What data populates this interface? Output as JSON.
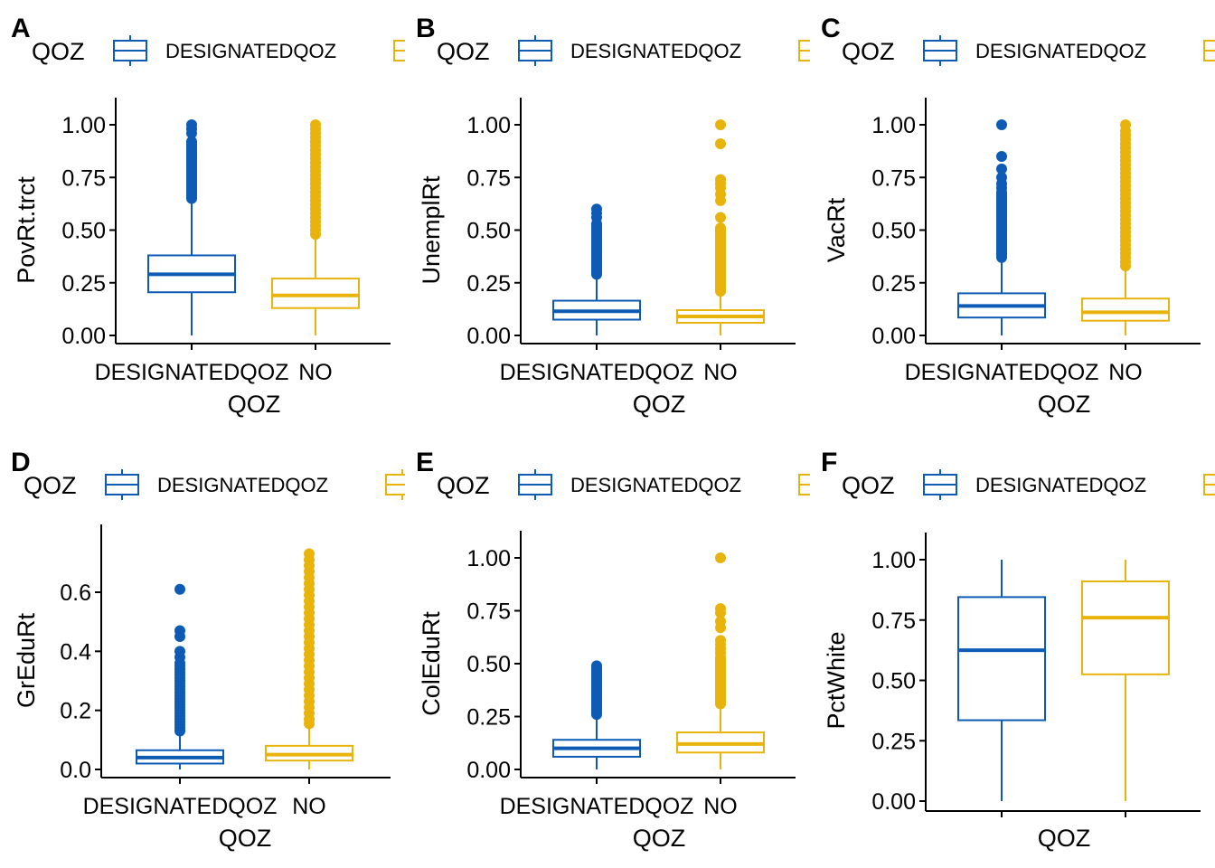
{
  "colors": {
    "designated": "#0d5bb5",
    "no": "#e8b40c"
  },
  "legend": {
    "title": "QOZ",
    "labels": [
      "DESIGNATEDQOZ",
      "NO"
    ]
  },
  "chart_data": [
    {
      "panel": "A",
      "type": "box",
      "xlabel": "QOZ",
      "ylabel": "PovRt.trct",
      "ylim": [
        0,
        1
      ],
      "yticks": [
        "0.00",
        "0.25",
        "0.50",
        "0.75",
        "1.00"
      ],
      "xticks": [
        "DESIGNATEDQOZ",
        "NO"
      ],
      "series": [
        {
          "name": "DESIGNATEDQOZ",
          "q1": 0.205,
          "median": 0.29,
          "q3": 0.38,
          "whisker_low": 0.0,
          "whisker_high": 0.65,
          "outliers": [
            0.65,
            0.66,
            0.67,
            0.68,
            0.69,
            0.7,
            0.71,
            0.72,
            0.73,
            0.74,
            0.75,
            0.76,
            0.77,
            0.78,
            0.79,
            0.8,
            0.81,
            0.82,
            0.83,
            0.84,
            0.85,
            0.86,
            0.87,
            0.88,
            0.89,
            0.9,
            0.91,
            0.92,
            0.96,
            0.98,
            1.0
          ]
        },
        {
          "name": "NO",
          "q1": 0.13,
          "median": 0.19,
          "q3": 0.27,
          "whisker_low": 0.0,
          "whisker_high": 0.48,
          "outliers": [
            0.48,
            0.5,
            0.52,
            0.54,
            0.56,
            0.58,
            0.6,
            0.62,
            0.64,
            0.66,
            0.68,
            0.7,
            0.72,
            0.74,
            0.76,
            0.78,
            0.8,
            0.82,
            0.84,
            0.86,
            0.88,
            0.9,
            0.92,
            0.94,
            0.96,
            0.98,
            1.0
          ]
        }
      ]
    },
    {
      "panel": "B",
      "type": "box",
      "xlabel": "QOZ",
      "ylabel": "UnemplRt",
      "ylim": [
        0,
        1
      ],
      "yticks": [
        "0.00",
        "0.25",
        "0.50",
        "0.75",
        "1.00"
      ],
      "xticks": [
        "DESIGNATEDQOZ",
        "NO"
      ],
      "series": [
        {
          "name": "DESIGNATEDQOZ",
          "q1": 0.075,
          "median": 0.115,
          "q3": 0.165,
          "whisker_low": 0.0,
          "whisker_high": 0.29,
          "outliers": [
            0.29,
            0.3,
            0.31,
            0.32,
            0.33,
            0.34,
            0.35,
            0.36,
            0.37,
            0.38,
            0.39,
            0.4,
            0.41,
            0.42,
            0.43,
            0.44,
            0.45,
            0.46,
            0.47,
            0.48,
            0.49,
            0.5,
            0.51,
            0.52,
            0.53,
            0.56,
            0.58,
            0.6
          ]
        },
        {
          "name": "NO",
          "q1": 0.06,
          "median": 0.09,
          "q3": 0.12,
          "whisker_low": 0.0,
          "whisker_high": 0.21,
          "outliers": [
            0.21,
            0.22,
            0.23,
            0.24,
            0.25,
            0.26,
            0.27,
            0.28,
            0.29,
            0.3,
            0.31,
            0.32,
            0.33,
            0.34,
            0.35,
            0.36,
            0.37,
            0.38,
            0.39,
            0.4,
            0.41,
            0.42,
            0.43,
            0.44,
            0.45,
            0.46,
            0.47,
            0.48,
            0.49,
            0.5,
            0.51,
            0.56,
            0.64,
            0.67,
            0.7,
            0.72,
            0.74,
            0.91,
            1.0
          ]
        }
      ]
    },
    {
      "panel": "C",
      "type": "box",
      "xlabel": "QOZ",
      "ylabel": "VacRt",
      "ylim": [
        0,
        1
      ],
      "yticks": [
        "0.00",
        "0.25",
        "0.50",
        "0.75",
        "1.00"
      ],
      "xticks": [
        "DESIGNATEDQOZ",
        "NO"
      ],
      "series": [
        {
          "name": "DESIGNATEDQOZ",
          "q1": 0.085,
          "median": 0.14,
          "q3": 0.2,
          "whisker_low": 0.0,
          "whisker_high": 0.37,
          "outliers": [
            0.37,
            0.38,
            0.39,
            0.4,
            0.41,
            0.42,
            0.43,
            0.44,
            0.45,
            0.46,
            0.47,
            0.48,
            0.49,
            0.5,
            0.51,
            0.52,
            0.53,
            0.54,
            0.55,
            0.56,
            0.57,
            0.58,
            0.59,
            0.6,
            0.61,
            0.62,
            0.63,
            0.64,
            0.65,
            0.66,
            0.67,
            0.68,
            0.7,
            0.72,
            0.75,
            0.79,
            0.85,
            1.0
          ]
        },
        {
          "name": "NO",
          "q1": 0.07,
          "median": 0.11,
          "q3": 0.175,
          "whisker_low": 0.0,
          "whisker_high": 0.33,
          "outliers": [
            0.33,
            0.35,
            0.37,
            0.39,
            0.41,
            0.43,
            0.45,
            0.47,
            0.49,
            0.51,
            0.53,
            0.55,
            0.57,
            0.59,
            0.61,
            0.63,
            0.65,
            0.67,
            0.69,
            0.71,
            0.73,
            0.75,
            0.77,
            0.79,
            0.81,
            0.83,
            0.85,
            0.87,
            0.89,
            0.91,
            0.93,
            0.95,
            0.97,
            1.0
          ]
        }
      ]
    },
    {
      "panel": "D",
      "type": "box",
      "xlabel": "QOZ",
      "ylabel": "GrEduRt",
      "ylim": [
        -0.02,
        0.74
      ],
      "yticks": [
        "0.0",
        "0.2",
        "0.4",
        "0.6"
      ],
      "ytick_values": [
        0,
        0.2,
        0.4,
        0.6
      ],
      "xticks": [
        "DESIGNATEDQOZ",
        "NO"
      ],
      "series": [
        {
          "name": "DESIGNATEDQOZ",
          "q1": 0.02,
          "median": 0.04,
          "q3": 0.065,
          "whisker_low": 0.0,
          "whisker_high": 0.13,
          "outliers": [
            0.13,
            0.14,
            0.15,
            0.16,
            0.17,
            0.18,
            0.19,
            0.2,
            0.21,
            0.22,
            0.23,
            0.24,
            0.25,
            0.26,
            0.27,
            0.28,
            0.29,
            0.3,
            0.31,
            0.32,
            0.33,
            0.34,
            0.35,
            0.36,
            0.38,
            0.4,
            0.45,
            0.47,
            0.61
          ]
        },
        {
          "name": "NO",
          "q1": 0.03,
          "median": 0.05,
          "q3": 0.08,
          "whisker_low": 0.0,
          "whisker_high": 0.155,
          "outliers": [
            0.155,
            0.17,
            0.19,
            0.21,
            0.23,
            0.25,
            0.27,
            0.29,
            0.31,
            0.33,
            0.35,
            0.37,
            0.39,
            0.41,
            0.43,
            0.45,
            0.47,
            0.49,
            0.51,
            0.53,
            0.55,
            0.57,
            0.59,
            0.61,
            0.63,
            0.65,
            0.67,
            0.69,
            0.71,
            0.73
          ]
        }
      ]
    },
    {
      "panel": "E",
      "type": "box",
      "xlabel": "QOZ",
      "ylabel": "ColEduRt",
      "ylim": [
        0,
        1
      ],
      "yticks": [
        "0.00",
        "0.25",
        "0.50",
        "0.75",
        "1.00"
      ],
      "xticks": [
        "DESIGNATEDQOZ",
        "NO"
      ],
      "series": [
        {
          "name": "DESIGNATEDQOZ",
          "q1": 0.06,
          "median": 0.1,
          "q3": 0.14,
          "whisker_low": 0.0,
          "whisker_high": 0.26,
          "outliers": [
            0.26,
            0.27,
            0.28,
            0.29,
            0.3,
            0.31,
            0.32,
            0.33,
            0.34,
            0.35,
            0.36,
            0.37,
            0.38,
            0.39,
            0.4,
            0.41,
            0.42,
            0.43,
            0.44,
            0.45,
            0.46,
            0.47,
            0.48,
            0.49
          ]
        },
        {
          "name": "NO",
          "q1": 0.08,
          "median": 0.12,
          "q3": 0.175,
          "whisker_low": 0.0,
          "whisker_high": 0.31,
          "outliers": [
            0.31,
            0.32,
            0.33,
            0.34,
            0.35,
            0.36,
            0.37,
            0.38,
            0.39,
            0.4,
            0.41,
            0.42,
            0.43,
            0.44,
            0.45,
            0.46,
            0.47,
            0.48,
            0.49,
            0.5,
            0.51,
            0.52,
            0.53,
            0.55,
            0.57,
            0.59,
            0.61,
            0.67,
            0.7,
            0.74,
            0.76,
            1.0
          ]
        }
      ]
    },
    {
      "panel": "F",
      "type": "box",
      "xlabel": "QOZ",
      "ylabel": "PctWhite",
      "ylim": [
        0,
        1
      ],
      "yticks": [
        "0.00",
        "0.25",
        "0.50",
        "0.75",
        "1.00"
      ],
      "xticks": [
        "",
        ""
      ],
      "series": [
        {
          "name": "DESIGNATEDQOZ",
          "q1": 0.335,
          "median": 0.625,
          "q3": 0.845,
          "whisker_low": 0.0,
          "whisker_high": 1.0,
          "outliers": []
        },
        {
          "name": "NO",
          "q1": 0.525,
          "median": 0.76,
          "q3": 0.91,
          "whisker_low": 0.0,
          "whisker_high": 1.0,
          "outliers": []
        }
      ]
    }
  ]
}
